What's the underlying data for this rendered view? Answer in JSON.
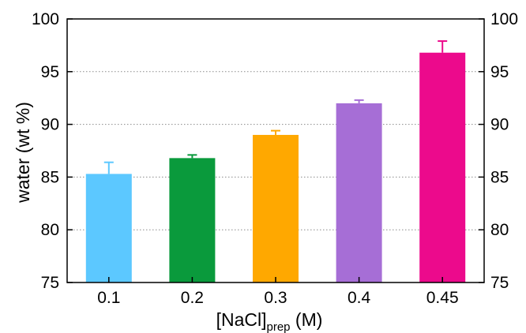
{
  "chart_data": {
    "type": "bar",
    "categories": [
      "0.1",
      "0.2",
      "0.3",
      "0.4",
      "0.45"
    ],
    "values": [
      85.3,
      86.8,
      89.0,
      92.0,
      96.8
    ],
    "errors": [
      1.1,
      0.3,
      0.4,
      0.3,
      1.1
    ],
    "colors": [
      "#5cc8ff",
      "#0a9a3c",
      "#ffa800",
      "#a66ed6",
      "#ec0a8c"
    ],
    "xlabel": {
      "main": "[NaCl]",
      "sub": "prep",
      "unit": " (M)"
    },
    "ylabel": "water (wt %)",
    "ylim": [
      75,
      100
    ],
    "yticks": [
      "75",
      "80",
      "85",
      "90",
      "95",
      "100"
    ],
    "right_axis_ticks": true,
    "grid": "horizontal dotted"
  }
}
